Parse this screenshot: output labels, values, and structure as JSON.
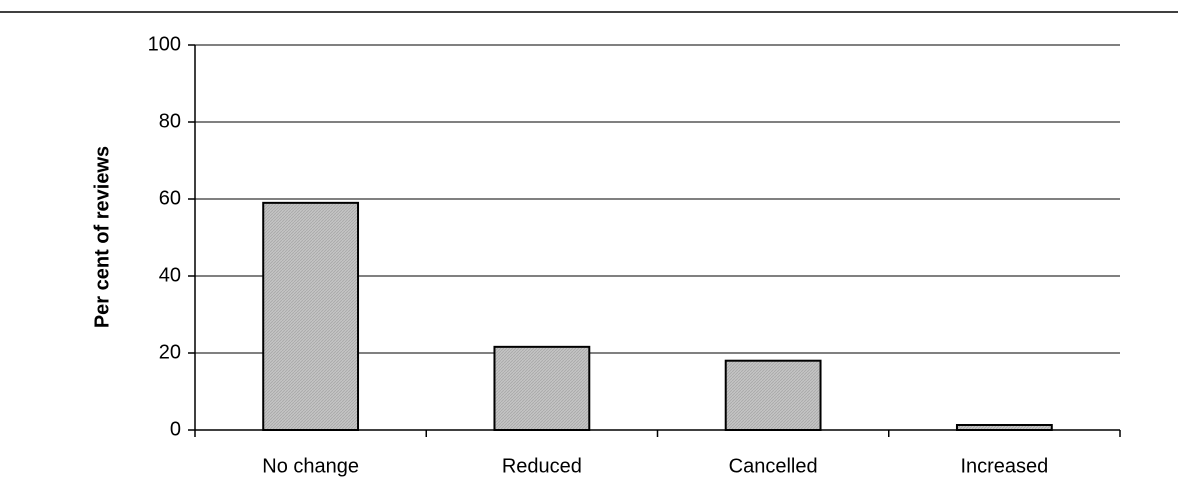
{
  "chart_data": {
    "type": "bar",
    "y_label": "Per cent of reviews",
    "categories": [
      "No change",
      "Reduced",
      "Cancelled",
      "Increased"
    ],
    "values": [
      59,
      21.6,
      18,
      1.3
    ],
    "color": "#c4c4c4",
    "ylim": [
      0,
      100
    ],
    "yticks": [
      0,
      20,
      40,
      60,
      80,
      100
    ],
    "grid": true
  }
}
